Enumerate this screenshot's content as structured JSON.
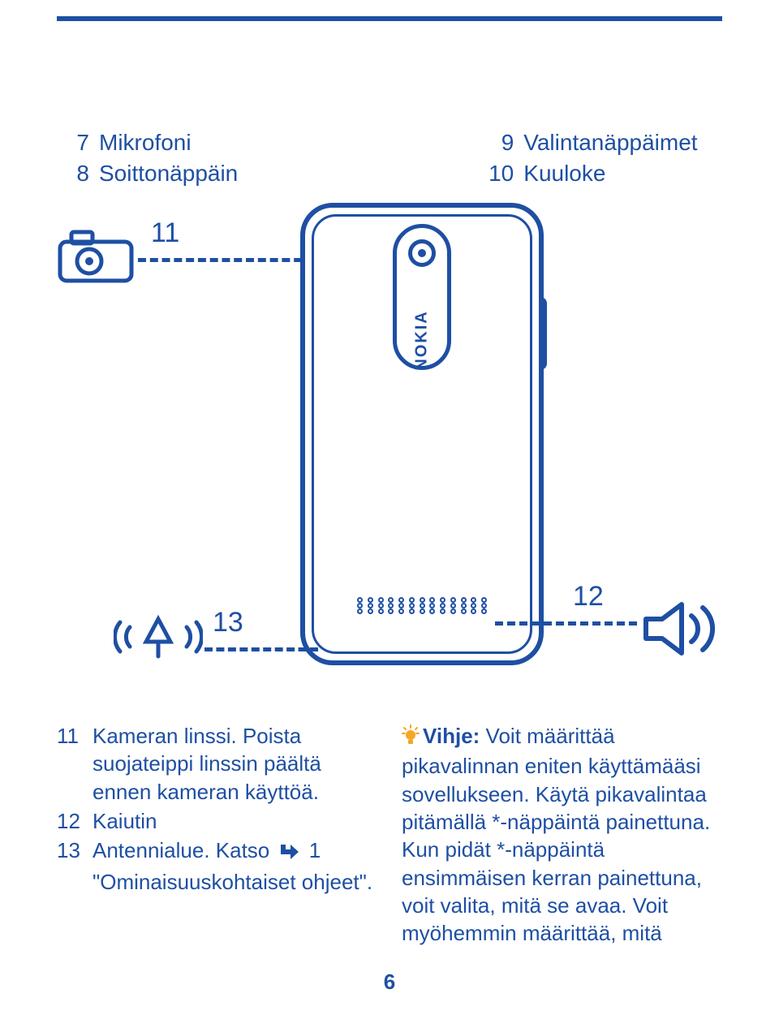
{
  "colors": {
    "brand": "#1e4fa3",
    "background": "#ffffff",
    "tip_bulb": "#f5a623"
  },
  "page_number": "6",
  "top_features": {
    "left": [
      {
        "n": "7",
        "label": "Mikrofoni"
      },
      {
        "n": "8",
        "label": "Soittonäppäin"
      }
    ],
    "right": [
      {
        "n": "9",
        "label": "Valintanäppäimet"
      },
      {
        "n": "10",
        "label": "Kuuloke"
      }
    ]
  },
  "diagram": {
    "brand_text": "NOKIA",
    "callouts": {
      "n11": "11",
      "n12": "12",
      "n13": "13"
    }
  },
  "left_column": {
    "items": [
      {
        "n": "11",
        "text": "Kameran linssi. Poista suojateippi linssin päältä ennen kameran käyttöä."
      },
      {
        "n": "12",
        "text": "Kaiutin"
      }
    ],
    "item13_n": "13",
    "item13_before": "Antennialue. Katso",
    "item13_after": "1 \"Ominaisuuskohtaiset ohjeet\"."
  },
  "right_column": {
    "tip_label": "Vihje:",
    "tip_text": " Voit määrittää pikavalinnan eniten käyttämääsi sovellukseen. Käytä pikavalintaa pitämällä *-näppäintä painettuna. Kun pidät *-näppäintä ensimmäisen kerran painettuna, voit valita, mitä se avaa. Voit myöhemmin määrittää, mitä"
  }
}
